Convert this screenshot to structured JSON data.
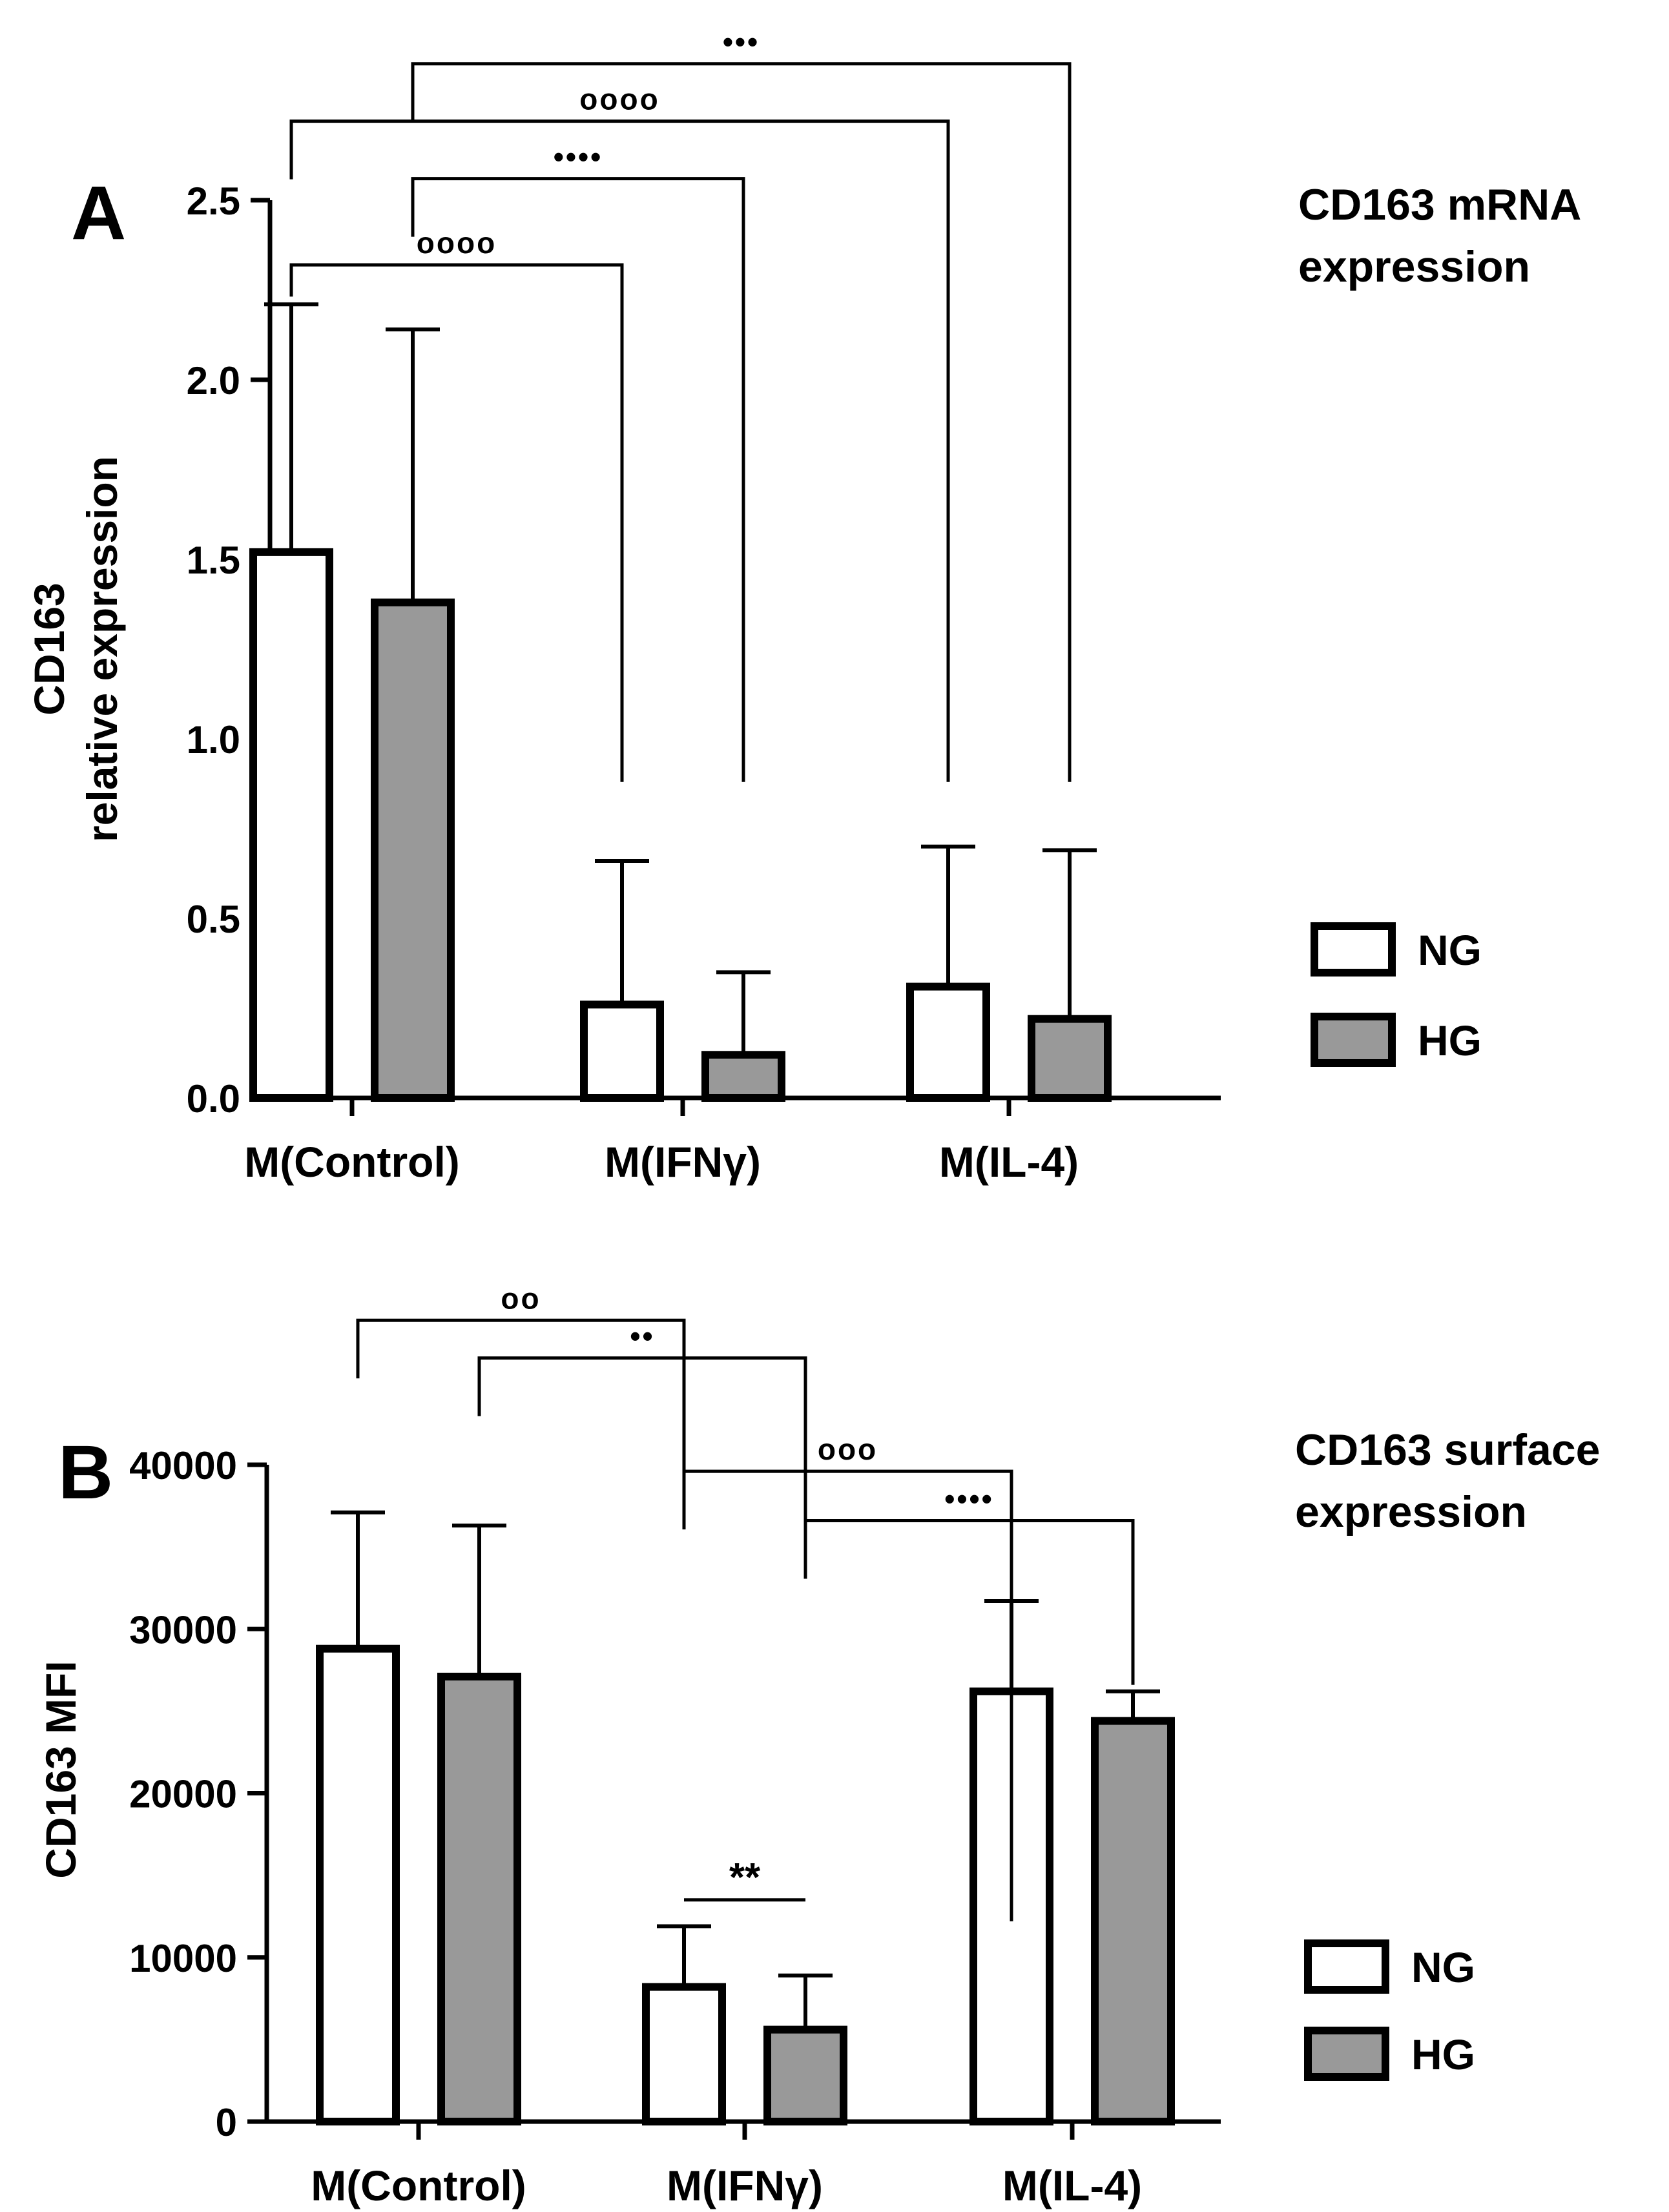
{
  "figure": {
    "panel_a_letter": "A",
    "panel_b_letter": "B"
  },
  "colors": {
    "ng_fill": "#ffffff",
    "hg_fill": "#999999",
    "stroke": "#000000"
  },
  "chart_data": [
    {
      "type": "bar",
      "panel": "A",
      "title": "CD163 mRNA\nexpression",
      "title_lines": [
        "CD163 mRNA",
        "expression"
      ],
      "ylabel_lines": [
        "CD163",
        "relative expression"
      ],
      "xlabel": "",
      "categories": [
        "M(Control)",
        "M(IFNγ)",
        "M(IL-4)"
      ],
      "ylim": [
        0,
        2.5
      ],
      "yticks": [
        0.0,
        0.5,
        1.0,
        1.5,
        2.0,
        2.5
      ],
      "ytick_labels": [
        "0.0",
        "0.5",
        "1.0",
        "1.5",
        "2.0",
        "2.5"
      ],
      "series": [
        {
          "name": "NG",
          "values": [
            1.52,
            0.26,
            0.31
          ],
          "errors": [
            0.69,
            0.4,
            0.39
          ]
        },
        {
          "name": "HG",
          "values": [
            1.38,
            0.12,
            0.22
          ],
          "errors": [
            0.76,
            0.23,
            0.47
          ]
        }
      ],
      "legend": {
        "position": "right",
        "entries": [
          "NG",
          "HG"
        ]
      },
      "annotations": [
        {
          "from": [
            0,
            0
          ],
          "to": [
            1,
            0
          ],
          "label": "oooo",
          "bracket_level": 2.32,
          "drop_to": 0.88
        },
        {
          "from": [
            0,
            1
          ],
          "to": [
            1,
            1
          ],
          "label": "••••",
          "bracket_level": 2.56,
          "drop_to": 0.88
        },
        {
          "from": [
            0,
            0
          ],
          "to": [
            2,
            0
          ],
          "label": "oooo",
          "bracket_level": 2.72,
          "drop_to": 0.88
        },
        {
          "from": [
            0,
            1
          ],
          "to": [
            2,
            1
          ],
          "label": "•••",
          "bracket_level": 2.88,
          "drop_to": 0.88
        }
      ]
    },
    {
      "type": "bar",
      "panel": "B",
      "title": "CD163 surface\nexpression",
      "title_lines": [
        "CD163 surface",
        "expression"
      ],
      "ylabel_lines": [
        "CD163 MFI"
      ],
      "xlabel": "",
      "categories": [
        "M(Control)",
        "M(IFNγ)",
        "M(IL-4)"
      ],
      "ylim": [
        0,
        40000
      ],
      "yticks": [
        0,
        10000,
        20000,
        30000,
        40000
      ],
      "ytick_labels": [
        "0",
        "10000",
        "20000",
        "30000",
        "40000"
      ],
      "series": [
        {
          "name": "NG",
          "values": [
            28800,
            8200,
            26200
          ],
          "errors": [
            8300,
            3700,
            5500
          ]
        },
        {
          "name": "HG",
          "values": [
            27100,
            5600,
            24400
          ],
          "errors": [
            9200,
            3300,
            1800
          ]
        }
      ],
      "legend": {
        "position": "right",
        "entries": [
          "NG",
          "HG"
        ]
      },
      "annotations": [
        {
          "from": [
            0,
            0
          ],
          "to": [
            1,
            0
          ],
          "label": "oo",
          "bracket_level": 48800,
          "drop_to": 38000
        },
        {
          "from": [
            0,
            1
          ],
          "to": [
            1,
            1
          ],
          "label": "••",
          "bracket_level": 46500,
          "drop_to": 36600
        },
        {
          "from": [
            1,
            0
          ],
          "to": [
            2,
            0
          ],
          "label": "ooo",
          "bracket_level": 39600,
          "drop_to": 12200
        },
        {
          "from": [
            1,
            1
          ],
          "to": [
            2,
            1
          ],
          "label": "••••",
          "bracket_level": 36600,
          "drop_to": 26600
        },
        {
          "from": [
            1,
            0
          ],
          "to": [
            1,
            1
          ],
          "label": "**",
          "bracket_level": 13500,
          "drop_to": null
        }
      ]
    }
  ]
}
